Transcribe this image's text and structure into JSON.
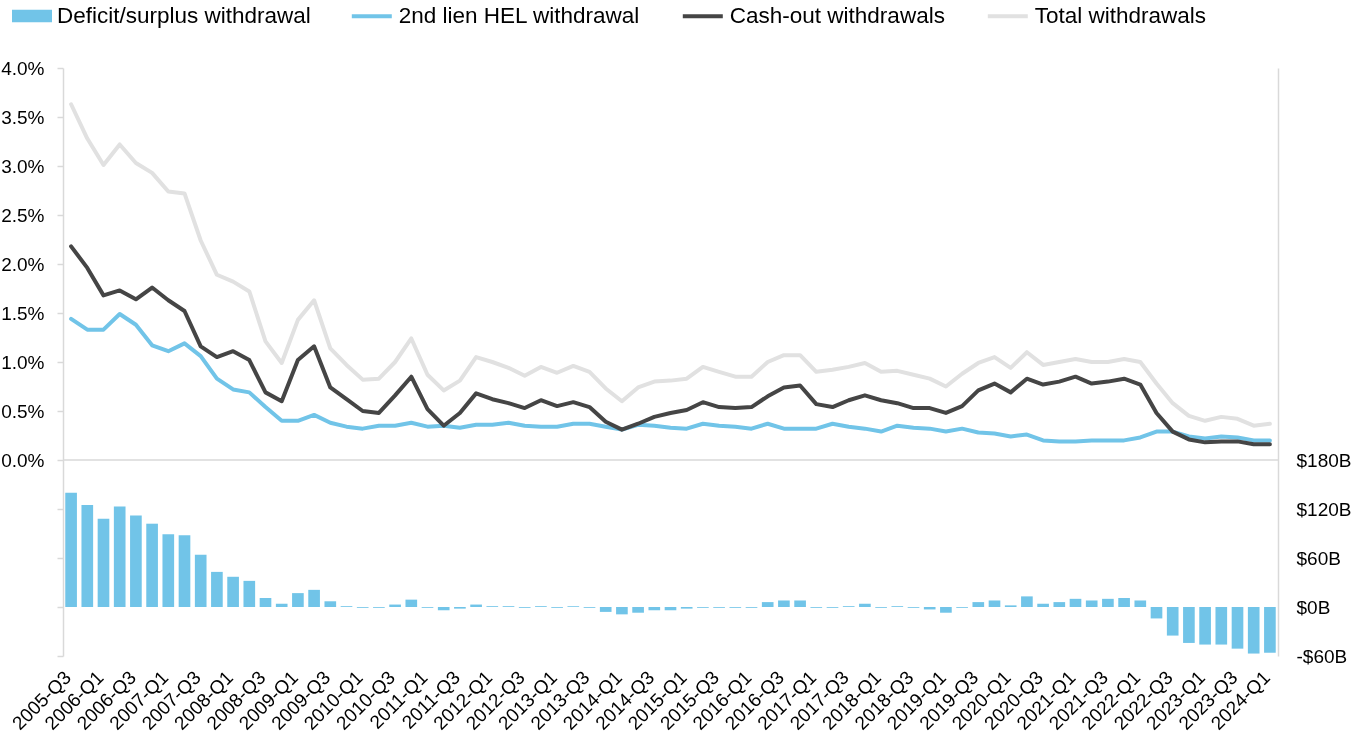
{
  "chart_data": {
    "type": "line",
    "categories": [
      "2005-Q3",
      null,
      "2006-Q1",
      null,
      "2006-Q3",
      null,
      "2007-Q1",
      null,
      "2007-Q3",
      null,
      "2008-Q1",
      null,
      "2008-Q3",
      null,
      "2009-Q1",
      null,
      "2009-Q3",
      null,
      "2010-Q1",
      null,
      "2010-Q3",
      null,
      "2011-Q1",
      null,
      "2011-Q3",
      null,
      "2012-Q1",
      null,
      "2012-Q3",
      null,
      "2013-Q1",
      null,
      "2013-Q3",
      null,
      "2014-Q1",
      null,
      "2014-Q3",
      null,
      "2015-Q1",
      null,
      "2015-Q3",
      null,
      "2016-Q1",
      null,
      "2016-Q3",
      null,
      "2017-Q1",
      null,
      "2017-Q3",
      null,
      "2018-Q1",
      null,
      "2018-Q3",
      null,
      "2019-Q1",
      null,
      "2019-Q3",
      null,
      "2020-Q1",
      null,
      "2020-Q3",
      null,
      "2021-Q1",
      null,
      "2021-Q3",
      null,
      "2022-Q1",
      null,
      "2022-Q3",
      null,
      "2023-Q1",
      null,
      "2023-Q3",
      null,
      "2024-Q1"
    ],
    "series": [
      {
        "name": "Deficit/surplus withdrawal",
        "type": "bar",
        "axis": "y2",
        "color": "#71c4e8",
        "values": [
          140,
          125,
          108,
          123,
          112,
          102,
          89,
          88,
          64,
          43,
          37,
          32,
          11,
          4,
          17,
          21,
          7,
          1,
          -1,
          -1,
          3,
          9,
          -1,
          -4,
          -2,
          3,
          1,
          1,
          -1,
          1,
          -1,
          1,
          -1,
          -6,
          -9,
          -7,
          -4,
          -4,
          -2,
          -1,
          -1,
          -1,
          -1,
          6,
          8,
          8,
          -1,
          -1,
          1,
          4,
          -1,
          1,
          -1,
          -3,
          -7,
          -1,
          6,
          8,
          2,
          13,
          4,
          6,
          10,
          8,
          10,
          11,
          8,
          -14,
          -35,
          -44,
          -46,
          -46,
          -51,
          -57,
          -56
        ]
      },
      {
        "name": "2nd lien HEL withdrawal",
        "color": "#71c4e8",
        "values": [
          1.44,
          1.33,
          1.33,
          1.49,
          1.38,
          1.17,
          1.11,
          1.19,
          1.06,
          0.83,
          0.72,
          0.69,
          0.54,
          0.4,
          0.4,
          0.46,
          0.38,
          0.34,
          0.32,
          0.35,
          0.35,
          0.38,
          0.34,
          0.35,
          0.33,
          0.36,
          0.36,
          0.38,
          0.35,
          0.34,
          0.34,
          0.37,
          0.37,
          0.34,
          0.31,
          0.36,
          0.35,
          0.33,
          0.32,
          0.37,
          0.35,
          0.34,
          0.32,
          0.37,
          0.32,
          0.32,
          0.32,
          0.37,
          0.34,
          0.32,
          0.29,
          0.35,
          0.33,
          0.32,
          0.29,
          0.32,
          0.28,
          0.27,
          0.24,
          0.26,
          0.2,
          0.19,
          0.19,
          0.2,
          0.2,
          0.2,
          0.23,
          0.29,
          0.29,
          0.24,
          0.22,
          0.24,
          0.23,
          0.2,
          0.2
        ]
      },
      {
        "name": "Cash-out withdrawals",
        "color": "#454545",
        "values": [
          2.18,
          1.96,
          1.68,
          1.73,
          1.64,
          1.76,
          1.63,
          1.52,
          1.16,
          1.05,
          1.11,
          1.02,
          0.69,
          0.6,
          1.02,
          1.16,
          0.74,
          0.62,
          0.5,
          0.48,
          0.66,
          0.85,
          0.52,
          0.35,
          0.48,
          0.68,
          0.62,
          0.58,
          0.53,
          0.61,
          0.55,
          0.59,
          0.54,
          0.39,
          0.31,
          0.37,
          0.44,
          0.48,
          0.51,
          0.59,
          0.54,
          0.53,
          0.54,
          0.65,
          0.74,
          0.76,
          0.57,
          0.54,
          0.61,
          0.66,
          0.61,
          0.58,
          0.53,
          0.53,
          0.48,
          0.55,
          0.71,
          0.78,
          0.69,
          0.83,
          0.77,
          0.8,
          0.85,
          0.78,
          0.8,
          0.83,
          0.77,
          0.48,
          0.29,
          0.21,
          0.18,
          0.19,
          0.19,
          0.16,
          0.16
        ]
      },
      {
        "name": "Total withdrawals",
        "color": "#e1e1e1",
        "values": [
          3.63,
          3.28,
          3.01,
          3.22,
          3.03,
          2.93,
          2.74,
          2.72,
          2.24,
          1.89,
          1.82,
          1.72,
          1.21,
          0.99,
          1.43,
          1.63,
          1.14,
          0.97,
          0.82,
          0.83,
          1.0,
          1.24,
          0.87,
          0.71,
          0.81,
          1.05,
          1.0,
          0.94,
          0.86,
          0.95,
          0.89,
          0.96,
          0.9,
          0.73,
          0.6,
          0.74,
          0.8,
          0.81,
          0.83,
          0.95,
          0.9,
          0.85,
          0.85,
          1.0,
          1.07,
          1.07,
          0.9,
          0.92,
          0.95,
          0.99,
          0.9,
          0.91,
          0.87,
          0.83,
          0.75,
          0.88,
          0.99,
          1.05,
          0.94,
          1.1,
          0.97,
          1.0,
          1.03,
          1.0,
          1.0,
          1.03,
          1.0,
          0.78,
          0.58,
          0.45,
          0.4,
          0.44,
          0.42,
          0.35,
          0.37
        ]
      }
    ],
    "ylim": [
      -2.0,
      4.0
    ],
    "yticks": [
      {
        "value": -2.0,
        "label": null
      },
      {
        "value": -1.5,
        "label": null
      },
      {
        "value": -1.0,
        "label": null
      },
      {
        "value": -0.5,
        "label": null
      },
      {
        "value": 0,
        "label": "0.0%"
      },
      {
        "value": 0.5,
        "label": "0.5%"
      },
      {
        "value": 1.0,
        "label": "1.0%"
      },
      {
        "value": 1.5,
        "label": "1.5%"
      },
      {
        "value": 2.0,
        "label": "2.0%"
      },
      {
        "value": 2.5,
        "label": "2.5%"
      },
      {
        "value": 3.0,
        "label": "3.0%"
      },
      {
        "value": 3.5,
        "label": "3.5%"
      },
      {
        "value": 4.0,
        "label": "4.0%"
      }
    ],
    "y2lim": [
      -60,
      660
    ],
    "y2ticks": [
      {
        "value": -60,
        "label": "-$60B"
      },
      {
        "value": 0,
        "label": "$0B"
      },
      {
        "value": 60,
        "label": "$60B"
      },
      {
        "value": 120,
        "label": "$120B"
      },
      {
        "value": 180,
        "label": "$180B"
      }
    ],
    "ref_lines": [
      {
        "axis": "y",
        "value": 0,
        "color": "#d9d9d9"
      }
    ],
    "legend": "top"
  }
}
